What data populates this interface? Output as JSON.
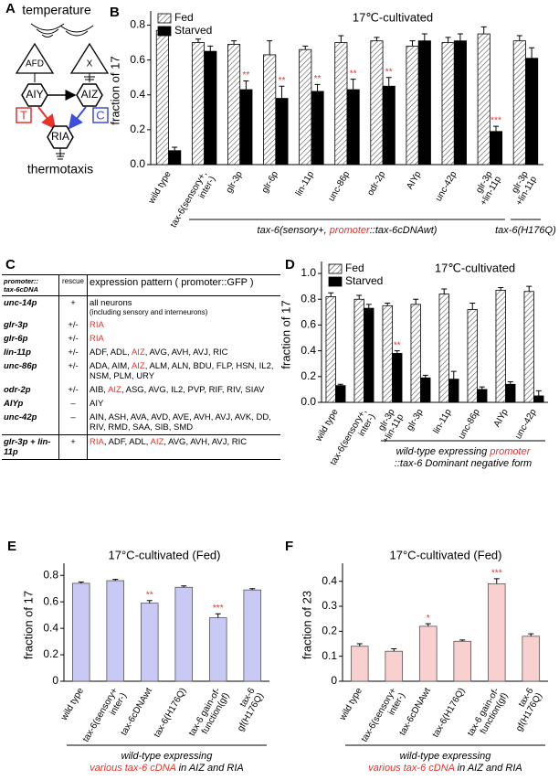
{
  "panel_a": {
    "label": "A",
    "temperature": "temperature",
    "thermotaxis": "thermotaxis",
    "neurons": [
      "AFD",
      "X",
      "AIY",
      "AIZ",
      "RIA"
    ],
    "inputs": [
      "T",
      "C"
    ]
  },
  "panel_c": {
    "label": "C",
    "header": [
      [
        "promoter::",
        "tax-6cDNA"
      ],
      "rescue",
      "expression pattern ( promoter::GFP )"
    ],
    "rows": [
      {
        "promoter": "unc-14p",
        "rescue": "+",
        "expression": [
          {
            "text": "all neurons"
          },
          {
            "text": "(including sensory and interneurons)",
            "small": true
          }
        ]
      },
      {
        "promoter": "glr-3p",
        "rescue": "+/-",
        "expression": [
          {
            "text": "RIA",
            "color": "#e8322b"
          }
        ]
      },
      {
        "promoter": "glr-6p",
        "rescue": "+/-",
        "expression": [
          {
            "text": "RIA",
            "color": "#e8322b"
          }
        ]
      },
      {
        "promoter": "lin-11p",
        "rescue": "+/-",
        "expression": [
          {
            "text": "ADF, ADL, "
          },
          {
            "text": "AIZ",
            "color": "#e8322b"
          },
          {
            "text": ", AVG, AVH, AVJ, RIC"
          }
        ]
      },
      {
        "promoter": "unc-86p",
        "rescue": "+/-",
        "expression": [
          {
            "text": "ADA, AIM, "
          },
          {
            "text": "AIZ",
            "color": "#e8322b"
          },
          {
            "text": ", ALM, ALN, BDU, FLP, HSN, IL2, NSM, PLM, URY"
          }
        ]
      },
      {
        "promoter": "odr-2p",
        "rescue": "+/-",
        "expression": [
          {
            "text": "AIB, "
          },
          {
            "text": "AIZ",
            "color": "#e8322b"
          },
          {
            "text": ", ASG, AVG, IL2, PVP, RIF, RIV, SIAV"
          }
        ]
      },
      {
        "promoter": "AIYp",
        "rescue": "–",
        "expression": [
          {
            "text": "AIY"
          }
        ]
      },
      {
        "promoter": "unc-42p",
        "rescue": "–",
        "expression": [
          {
            "text": "AIN, ASH, AVA, AVD, AVE, AVH, AVJ, AVK, DD, RIV, RMD, SAA, SIB, SMD"
          }
        ]
      },
      {
        "promoter": "glr-3p + lin-11p",
        "rescue": "+",
        "expression": [
          {
            "text": "RIA",
            "color": "#e8322b"
          },
          {
            "text": ", ADF, ADL, "
          },
          {
            "text": "AIZ",
            "color": "#e8322b"
          },
          {
            "text": ", AVG, AVH, AVJ, RIC"
          }
        ]
      }
    ]
  },
  "chart_data": [
    {
      "type": "bar",
      "label": "B",
      "title": "17℃-cultivated",
      "ylabel": "fraction of 17",
      "categories": [
        "wild type",
        "tax-6(sensory+, inter-)",
        "glr-3p",
        "glr-6p",
        "lin-11p",
        "unc-86p",
        "odr-2p",
        "AIYp",
        "unc-42p",
        "glr-3p +lin-11p",
        "glr-3p +lin-11p"
      ],
      "series": [
        {
          "name": "Fed",
          "color": "#ffffff",
          "hatch": true,
          "values": [
            0.77,
            0.7,
            0.69,
            0.63,
            0.66,
            0.7,
            0.71,
            0.68,
            0.7,
            0.75,
            0.71
          ],
          "errors": [
            0.02,
            0.02,
            0.02,
            0.08,
            0.02,
            0.04,
            0.02,
            0.03,
            0.03,
            0.04,
            0.03
          ]
        },
        {
          "name": "Starved",
          "color": "#000000",
          "values": [
            0.08,
            0.65,
            0.43,
            0.38,
            0.42,
            0.43,
            0.45,
            0.71,
            0.71,
            0.19,
            0.61
          ],
          "errors": [
            0.02,
            0.03,
            0.05,
            0.07,
            0.04,
            0.06,
            0.05,
            0.04,
            0.04,
            0.03,
            0.06
          ],
          "annotations": [
            null,
            null,
            "**",
            "**",
            "**",
            "**",
            "**",
            null,
            null,
            "***",
            null
          ]
        }
      ],
      "groups": [
        {
          "lines": [
            [
              {
                "text": "tax-6(sensory+, "
              },
              {
                "text": "promoter",
                "color": "#e8322b"
              },
              {
                "text": "::tax-6cDNAwt)"
              }
            ]
          ]
        },
        {
          "lines": [
            [
              {
                "text": "tax-6(H176Q)"
              }
            ]
          ]
        }
      ],
      "ylim": [
        0,
        0.85
      ],
      "yticks": [
        {
          "value": 0,
          "label": "0.0"
        },
        0.2,
        0.4,
        0.6,
        0.8
      ],
      "legend": "upper left"
    },
    {
      "type": "bar",
      "label": "D",
      "title": "17℃-cultivated",
      "ylabel": "fraction of 17",
      "categories": [
        "wild type",
        "tax-6(sensory+, inter-)",
        "glr-3p +lin-11p",
        "glr-3p",
        "lin-11p",
        "unc-86p",
        "AIYp",
        "unc-42p"
      ],
      "series": [
        {
          "name": "Fed",
          "color": "#ffffff",
          "hatch": true,
          "values": [
            0.82,
            0.8,
            0.75,
            0.76,
            0.84,
            0.72,
            0.87,
            0.86
          ],
          "errors": [
            0.03,
            0.03,
            0.02,
            0.04,
            0.04,
            0.05,
            0.02,
            0.04
          ]
        },
        {
          "name": "Starved",
          "color": "#000000",
          "values": [
            0.13,
            0.73,
            0.38,
            0.19,
            0.18,
            0.1,
            0.14,
            0.05
          ],
          "errors": [
            0.01,
            0.03,
            0.02,
            0.02,
            0.06,
            0.02,
            0.02,
            0.04
          ],
          "annotations": [
            null,
            null,
            "**",
            null,
            null,
            null,
            null,
            null
          ]
        }
      ],
      "groups": [
        {
          "lines": [
            [
              {
                "text": "wild-type expressing "
              },
              {
                "text": "promoter",
                "color": "#e8322b"
              }
            ],
            [
              {
                "text": "::tax-6 Dominant negative form"
              }
            ]
          ]
        }
      ],
      "ylim": [
        0,
        1.05
      ],
      "yticks": [
        {
          "value": 0,
          "label": "0.0"
        },
        0.2,
        0.4,
        0.6,
        0.8,
        {
          "value": 1,
          "label": "1.0"
        }
      ],
      "legend": "upper left"
    },
    {
      "type": "bar",
      "label": "E",
      "title": "17°C-cultivated (Fed)",
      "ylabel": "fraction of 17",
      "categories": [
        "wild type",
        "tax-6(sensory+ inter-)",
        "tax-6cDNAwt",
        "tax-6(H176Q)",
        "tax-6 gain-of-function(gf)",
        "tax-6 gf(H176Q)"
      ],
      "series": [
        {
          "name": "Fed",
          "color": "#c9c9f5",
          "values": [
            0.74,
            0.76,
            0.59,
            0.71,
            0.48,
            0.69
          ],
          "errors": [
            0.01,
            0.01,
            0.02,
            0.01,
            0.03,
            0.01
          ],
          "annotations": [
            null,
            null,
            "**",
            null,
            "***",
            null
          ]
        }
      ],
      "groups": [
        {
          "lines": [
            [
              {
                "text": "wild-type expressing"
              }
            ],
            [
              {
                "text": "various tax-6 cDNA",
                "color": "#e8322b"
              },
              {
                "text": " in AIZ and RIA"
              }
            ]
          ]
        }
      ],
      "ylim": [
        0,
        0.85
      ],
      "yticks": [
        0,
        0.2,
        0.4,
        0.6,
        0.8
      ]
    },
    {
      "type": "bar",
      "label": "F",
      "title": "17°C-cultivated (Fed)",
      "ylabel": "fraction of 23",
      "categories": [
        "wild type",
        "tax-6(sensory+ inter-)",
        "tax-6cDNAwt",
        "tax-6(H176Q)",
        "tax-6 gain-of-function(gf)",
        "tax-6 gf(H176Q)"
      ],
      "series": [
        {
          "name": "Fed",
          "color": "#f9d0d0",
          "values": [
            0.14,
            0.12,
            0.22,
            0.16,
            0.39,
            0.18
          ],
          "errors": [
            0.01,
            0.01,
            0.01,
            0.005,
            0.02,
            0.01
          ],
          "annotations": [
            null,
            null,
            "*",
            null,
            "***",
            null
          ]
        }
      ],
      "groups": [
        {
          "lines": [
            [
              {
                "text": "wild-type expressing"
              }
            ],
            [
              {
                "text": "various tax-6 cDNA",
                "color": "#e8322b"
              },
              {
                "text": " in AIZ and RIA"
              }
            ]
          ]
        }
      ],
      "ylim": [
        0,
        0.45
      ],
      "yticks": [
        0,
        0.1,
        0.2,
        0.3,
        0.4
      ]
    }
  ]
}
